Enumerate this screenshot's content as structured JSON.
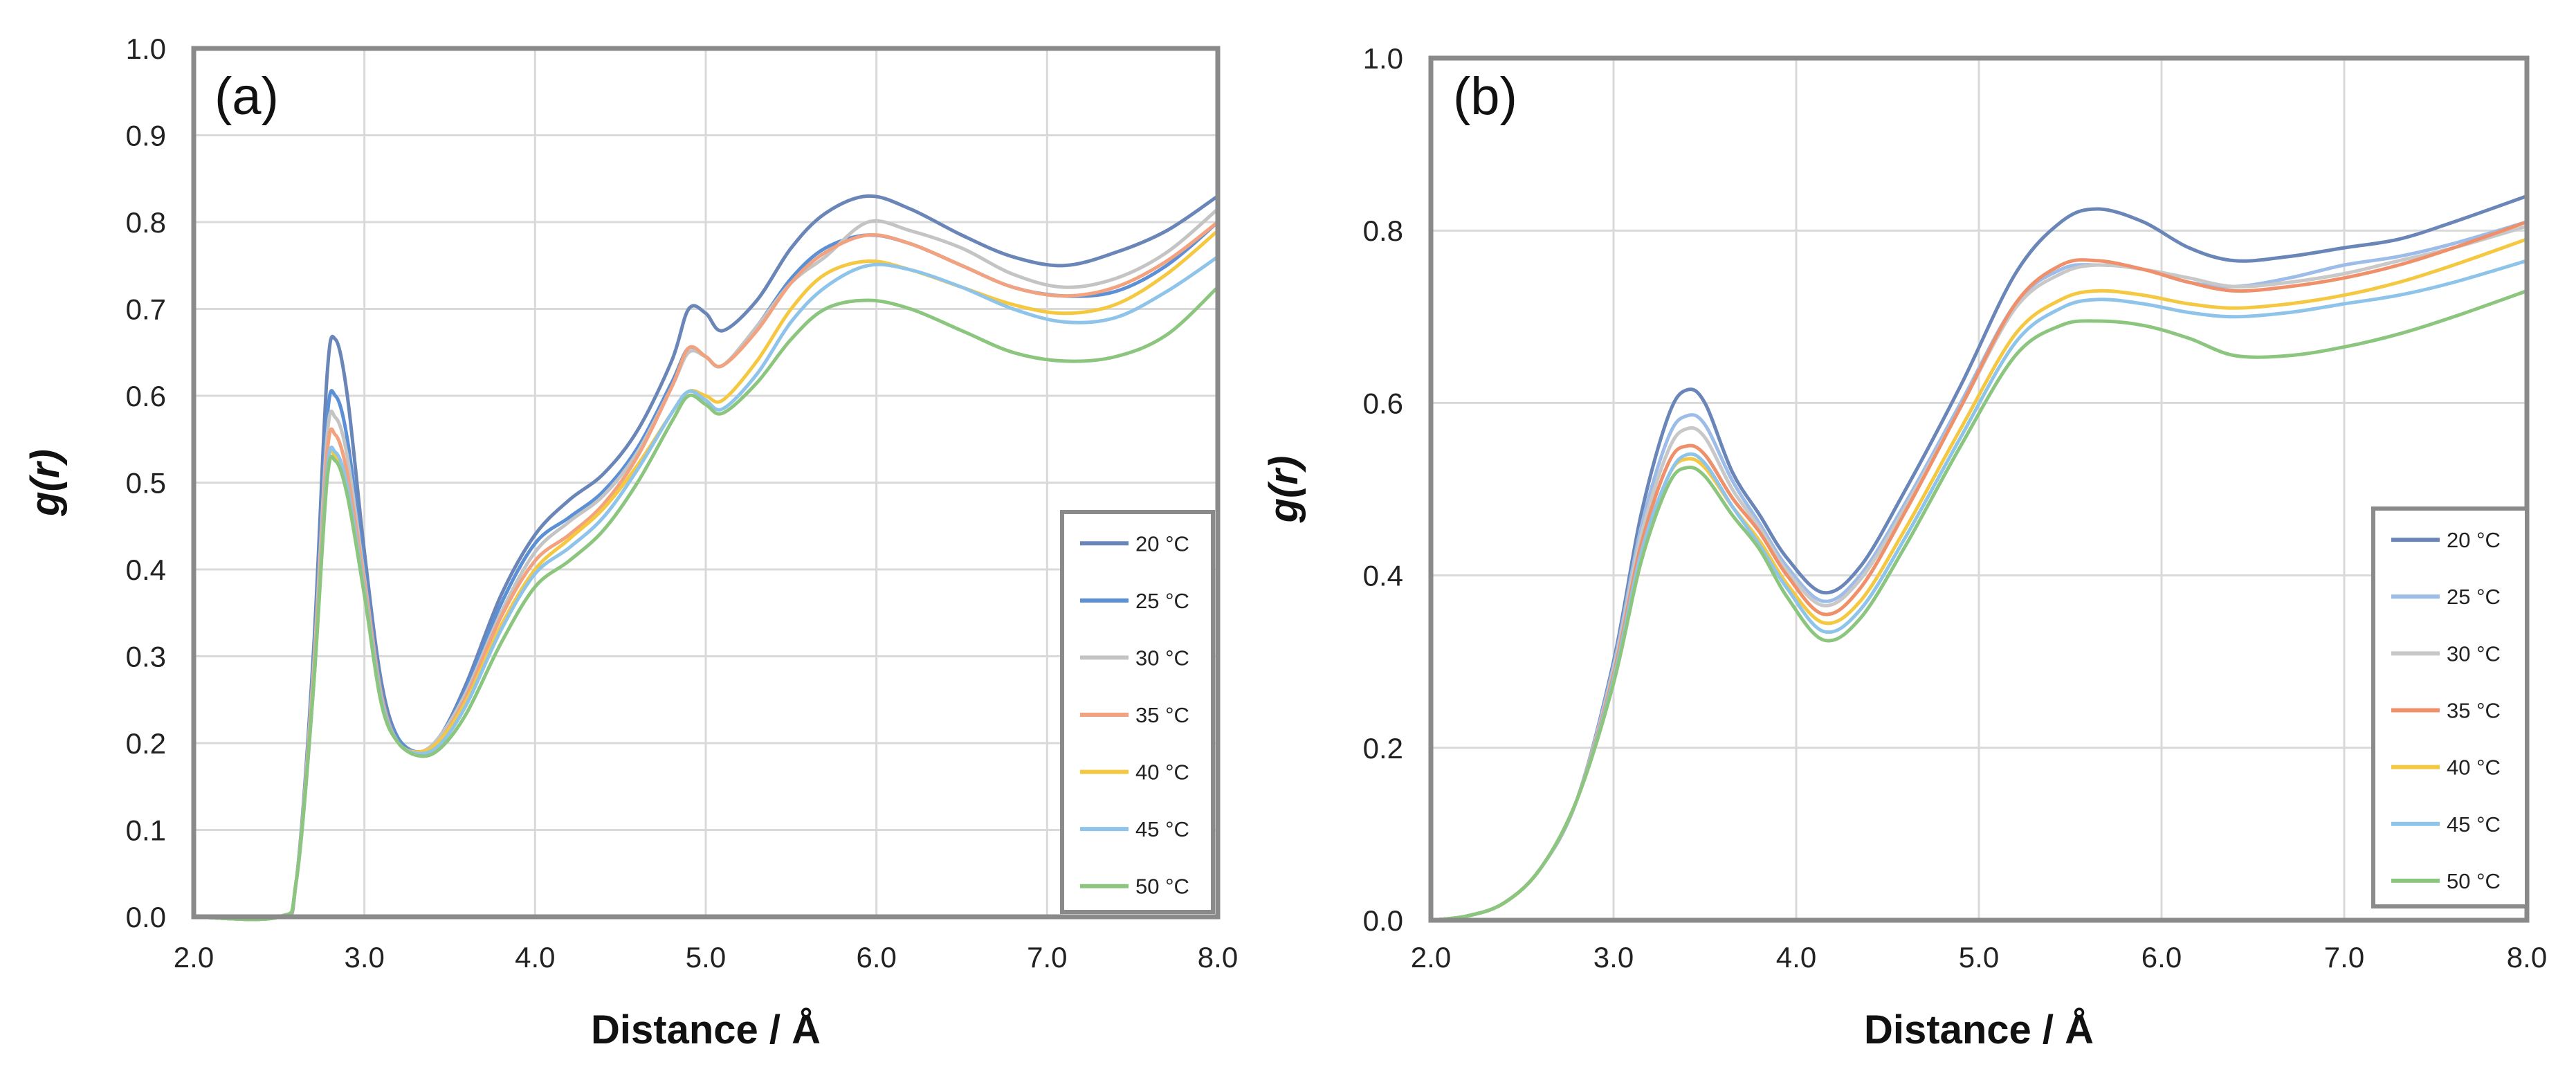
{
  "chart_data": [
    {
      "type": "line",
      "panel_label": "(a)",
      "xlabel": "Distance / Å",
      "ylabel": "g(r)",
      "xlim": [
        2.0,
        8.0
      ],
      "ylim": [
        0.0,
        1.0
      ],
      "x_ticks": [
        "2.0",
        "3.0",
        "4.0",
        "5.0",
        "6.0",
        "7.0",
        "8.0"
      ],
      "y_ticks": [
        "0.0",
        "0.1",
        "0.2",
        "0.3",
        "0.4",
        "0.5",
        "0.6",
        "0.7",
        "0.8",
        "0.9",
        "1.0"
      ],
      "grid": true,
      "legend_position": "bottom-right",
      "x": [
        2.0,
        2.5,
        2.6,
        2.7,
        2.78,
        2.83,
        2.9,
        3.0,
        3.1,
        3.2,
        3.33,
        3.45,
        3.6,
        3.8,
        4.0,
        4.2,
        4.4,
        4.6,
        4.8,
        4.9,
        5.0,
        5.1,
        5.3,
        5.5,
        5.7,
        5.95,
        6.2,
        6.5,
        6.8,
        7.1,
        7.4,
        7.7,
        8.0
      ],
      "series": [
        {
          "name": "20 °C",
          "color": "#6a86b8",
          "values": [
            0.0,
            0.0,
            0.04,
            0.3,
            0.62,
            0.665,
            0.6,
            0.42,
            0.27,
            0.205,
            0.19,
            0.21,
            0.27,
            0.37,
            0.44,
            0.48,
            0.51,
            0.56,
            0.64,
            0.7,
            0.695,
            0.675,
            0.71,
            0.77,
            0.81,
            0.83,
            0.815,
            0.785,
            0.76,
            0.75,
            0.765,
            0.79,
            0.83
          ]
        },
        {
          "name": "25 °C",
          "color": "#5b8fd6",
          "values": [
            0.0,
            0.0,
            0.04,
            0.29,
            0.57,
            0.6,
            0.55,
            0.4,
            0.26,
            0.205,
            0.19,
            0.21,
            0.265,
            0.36,
            0.43,
            0.46,
            0.49,
            0.54,
            0.615,
            0.655,
            0.645,
            0.635,
            0.68,
            0.735,
            0.77,
            0.785,
            0.775,
            0.75,
            0.725,
            0.715,
            0.72,
            0.75,
            0.8
          ]
        },
        {
          "name": "30 °C",
          "color": "#c4c4c4",
          "values": [
            0.0,
            0.0,
            0.04,
            0.28,
            0.55,
            0.575,
            0.53,
            0.39,
            0.255,
            0.2,
            0.19,
            0.21,
            0.26,
            0.35,
            0.42,
            0.455,
            0.485,
            0.535,
            0.61,
            0.65,
            0.645,
            0.635,
            0.68,
            0.73,
            0.76,
            0.8,
            0.79,
            0.77,
            0.74,
            0.725,
            0.735,
            0.765,
            0.815
          ]
        },
        {
          "name": "35 °C",
          "color": "#f2a27e",
          "values": [
            0.0,
            0.0,
            0.04,
            0.27,
            0.53,
            0.555,
            0.51,
            0.385,
            0.255,
            0.2,
            0.19,
            0.205,
            0.255,
            0.345,
            0.41,
            0.44,
            0.475,
            0.53,
            0.61,
            0.655,
            0.645,
            0.635,
            0.675,
            0.73,
            0.765,
            0.785,
            0.775,
            0.75,
            0.725,
            0.715,
            0.725,
            0.755,
            0.8
          ]
        },
        {
          "name": "40 °C",
          "color": "#f5c842",
          "values": [
            0.0,
            0.0,
            0.04,
            0.26,
            0.51,
            0.53,
            0.49,
            0.375,
            0.25,
            0.2,
            0.19,
            0.205,
            0.25,
            0.335,
            0.4,
            0.435,
            0.47,
            0.52,
            0.58,
            0.605,
            0.6,
            0.595,
            0.64,
            0.7,
            0.74,
            0.755,
            0.745,
            0.725,
            0.705,
            0.695,
            0.705,
            0.74,
            0.79
          ]
        },
        {
          "name": "45 °C",
          "color": "#8ec3ea",
          "values": [
            0.0,
            0.0,
            0.04,
            0.26,
            0.51,
            0.535,
            0.495,
            0.375,
            0.25,
            0.2,
            0.188,
            0.2,
            0.245,
            0.33,
            0.395,
            0.425,
            0.46,
            0.515,
            0.58,
            0.605,
            0.595,
            0.585,
            0.625,
            0.685,
            0.725,
            0.75,
            0.745,
            0.725,
            0.7,
            0.685,
            0.69,
            0.72,
            0.76
          ]
        },
        {
          "name": "50 °C",
          "color": "#8cc67e",
          "values": [
            0.0,
            0.0,
            0.04,
            0.26,
            0.5,
            0.525,
            0.485,
            0.37,
            0.245,
            0.2,
            0.185,
            0.195,
            0.235,
            0.315,
            0.38,
            0.41,
            0.445,
            0.5,
            0.57,
            0.6,
            0.59,
            0.58,
            0.615,
            0.665,
            0.7,
            0.71,
            0.7,
            0.675,
            0.65,
            0.64,
            0.645,
            0.67,
            0.725
          ]
        }
      ]
    },
    {
      "type": "line",
      "panel_label": "(b)",
      "xlabel": "Distance / Å",
      "ylabel": "g(r)",
      "xlim": [
        2.0,
        8.0
      ],
      "ylim": [
        0.0,
        1.0
      ],
      "x_ticks": [
        "2.0",
        "3.0",
        "4.0",
        "5.0",
        "6.0",
        "7.0",
        "8.0"
      ],
      "y_ticks": [
        "0.0",
        "0.2",
        "0.4",
        "0.6",
        "0.8",
        "1.0"
      ],
      "grid": true,
      "legend_position": "bottom-right",
      "x": [
        2.0,
        2.2,
        2.4,
        2.6,
        2.8,
        3.0,
        3.15,
        3.3,
        3.4,
        3.5,
        3.65,
        3.8,
        3.95,
        4.15,
        4.35,
        4.6,
        4.9,
        5.2,
        5.45,
        5.65,
        5.9,
        6.15,
        6.4,
        6.7,
        7.0,
        7.3,
        7.6,
        8.0
      ],
      "series": [
        {
          "name": "20 °C",
          "color": "#6a86b8",
          "values": [
            0.0,
            0.005,
            0.02,
            0.06,
            0.14,
            0.3,
            0.47,
            0.585,
            0.615,
            0.6,
            0.52,
            0.47,
            0.42,
            0.38,
            0.41,
            0.5,
            0.62,
            0.75,
            0.81,
            0.825,
            0.81,
            0.78,
            0.765,
            0.77,
            0.78,
            0.79,
            0.81,
            0.84
          ]
        },
        {
          "name": "25 °C",
          "color": "#9dbde8",
          "values": [
            0.0,
            0.005,
            0.02,
            0.06,
            0.14,
            0.295,
            0.455,
            0.56,
            0.585,
            0.575,
            0.51,
            0.46,
            0.41,
            0.37,
            0.4,
            0.485,
            0.6,
            0.715,
            0.755,
            0.76,
            0.755,
            0.74,
            0.735,
            0.745,
            0.76,
            0.77,
            0.785,
            0.81
          ]
        },
        {
          "name": "30 °C",
          "color": "#c8c8c8",
          "values": [
            0.0,
            0.005,
            0.02,
            0.06,
            0.14,
            0.29,
            0.445,
            0.545,
            0.57,
            0.56,
            0.5,
            0.455,
            0.405,
            0.365,
            0.395,
            0.48,
            0.595,
            0.71,
            0.75,
            0.76,
            0.755,
            0.745,
            0.735,
            0.74,
            0.75,
            0.765,
            0.78,
            0.805
          ]
        },
        {
          "name": "35 °C",
          "color": "#f0906a",
          "values": [
            0.0,
            0.005,
            0.02,
            0.06,
            0.14,
            0.285,
            0.435,
            0.53,
            0.55,
            0.54,
            0.49,
            0.45,
            0.4,
            0.355,
            0.385,
            0.475,
            0.595,
            0.715,
            0.76,
            0.765,
            0.755,
            0.74,
            0.73,
            0.735,
            0.745,
            0.76,
            0.78,
            0.81
          ]
        },
        {
          "name": "40 °C",
          "color": "#f5c842",
          "values": [
            0.0,
            0.005,
            0.02,
            0.06,
            0.14,
            0.28,
            0.425,
            0.515,
            0.535,
            0.525,
            0.48,
            0.44,
            0.39,
            0.345,
            0.37,
            0.455,
            0.57,
            0.68,
            0.72,
            0.73,
            0.725,
            0.715,
            0.71,
            0.715,
            0.725,
            0.74,
            0.76,
            0.79
          ]
        },
        {
          "name": "45 °C",
          "color": "#8ec3ea",
          "values": [
            0.0,
            0.005,
            0.02,
            0.06,
            0.14,
            0.28,
            0.425,
            0.515,
            0.54,
            0.53,
            0.48,
            0.435,
            0.385,
            0.335,
            0.36,
            0.445,
            0.56,
            0.67,
            0.71,
            0.72,
            0.715,
            0.705,
            0.7,
            0.705,
            0.715,
            0.725,
            0.74,
            0.765
          ]
        },
        {
          "name": "50 °C",
          "color": "#8cc67e",
          "values": [
            0.0,
            0.005,
            0.02,
            0.06,
            0.14,
            0.275,
            0.415,
            0.505,
            0.525,
            0.515,
            0.47,
            0.43,
            0.375,
            0.325,
            0.35,
            0.435,
            0.55,
            0.655,
            0.69,
            0.695,
            0.69,
            0.675,
            0.655,
            0.655,
            0.665,
            0.68,
            0.7,
            0.73
          ]
        }
      ]
    }
  ]
}
